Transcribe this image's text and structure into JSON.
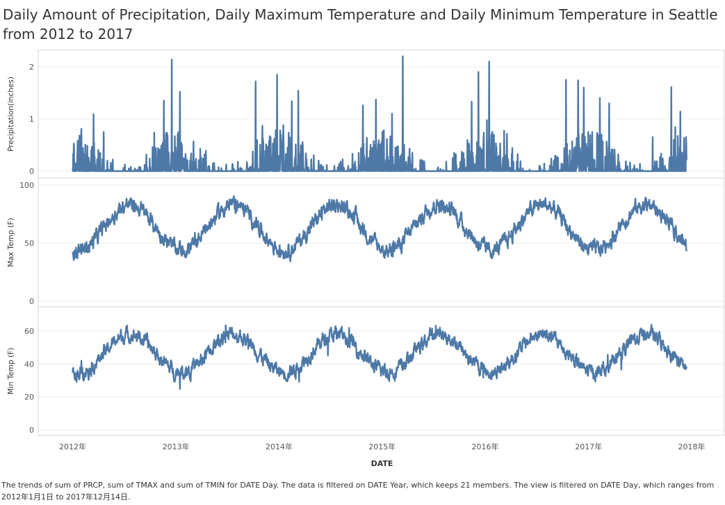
{
  "title": "Daily Amount of Precipitation, Daily Maximum Temperature and Daily Minimum Temperature in Seattle from 2012 to 2017",
  "caption": "The trends of sum of PRCP, sum of TMAX and sum of TMIN for DATE Day. The data is filtered on DATE Year, which keeps 21 members. The view is filtered on DATE Day, which ranges from 2012年1月1日 to 2017年12月14日.",
  "chart_data": {
    "type": "line",
    "color": "#4e79a7",
    "xlabel": "DATE",
    "x_domain": [
      "2012-01-01",
      "2017-12-14"
    ],
    "x_ticks": [
      {
        "date": "2012-01-01",
        "label": "2012年"
      },
      {
        "date": "2013-01-01",
        "label": "2013年"
      },
      {
        "date": "2014-01-01",
        "label": "2014年"
      },
      {
        "date": "2015-01-01",
        "label": "2015年"
      },
      {
        "date": "2016-01-01",
        "label": "2016年"
      },
      {
        "date": "2017-01-01",
        "label": "2017年"
      },
      {
        "date": "2018-01-01",
        "label": "2018年"
      }
    ],
    "panels": [
      {
        "name": "precipitation",
        "ylabel": "Precipitation(inches)",
        "ylim": [
          0,
          2.3
        ],
        "yticks": [
          0,
          1,
          2
        ],
        "series_values": "daily PRCP: mostly 0-0.6 in, dense bursts in winter, near 0 in summer",
        "peaks": [
          {
            "date": "2012-02-01",
            "value": 0.81
          },
          {
            "date": "2012-03-15",
            "value": 1.09
          },
          {
            "date": "2012-04-20",
            "value": 0.75
          },
          {
            "date": "2012-11-19",
            "value": 1.35
          },
          {
            "date": "2012-12-17",
            "value": 2.14
          },
          {
            "date": "2013-01-15",
            "value": 1.52
          },
          {
            "date": "2013-10-10",
            "value": 1.72
          },
          {
            "date": "2013-11-05",
            "value": 0.62
          },
          {
            "date": "2013-12-25",
            "value": 1.85
          },
          {
            "date": "2014-02-15",
            "value": 1.34
          },
          {
            "date": "2014-03-10",
            "value": 1.54
          },
          {
            "date": "2014-10-25",
            "value": 1.26
          },
          {
            "date": "2014-12-10",
            "value": 1.37
          },
          {
            "date": "2015-02-05",
            "value": 1.1
          },
          {
            "date": "2015-03-15",
            "value": 2.2
          },
          {
            "date": "2015-11-14",
            "value": 1.33
          },
          {
            "date": "2015-12-08",
            "value": 1.9
          },
          {
            "date": "2016-01-15",
            "value": 2.1
          },
          {
            "date": "2016-10-13",
            "value": 1.75
          },
          {
            "date": "2016-11-25",
            "value": 1.74
          },
          {
            "date": "2016-12-15",
            "value": 1.6
          },
          {
            "date": "2017-02-10",
            "value": 1.4
          },
          {
            "date": "2017-03-15",
            "value": 1.3
          },
          {
            "date": "2017-10-21",
            "value": 1.61
          },
          {
            "date": "2017-11-22",
            "value": 1.14
          }
        ]
      },
      {
        "name": "max-temp",
        "ylabel": "Max Temp (F)",
        "ylim": [
          0,
          100
        ],
        "yticks": [
          0,
          50,
          100
        ],
        "seasonal_min": 44,
        "seasonal_max": 83,
        "series_values": "daily TMAX: ~44F winter lows to ~83F summer highs, extremes 30-96F"
      },
      {
        "name": "min-temp",
        "ylabel": "Min Temp (F)",
        "ylim": [
          0,
          72
        ],
        "yticks": [
          0,
          20,
          40,
          60
        ],
        "seasonal_min": 35,
        "seasonal_max": 58,
        "series_values": "daily TMIN: ~35F winter lows to ~58F summer highs, extremes 19-70F"
      }
    ]
  }
}
